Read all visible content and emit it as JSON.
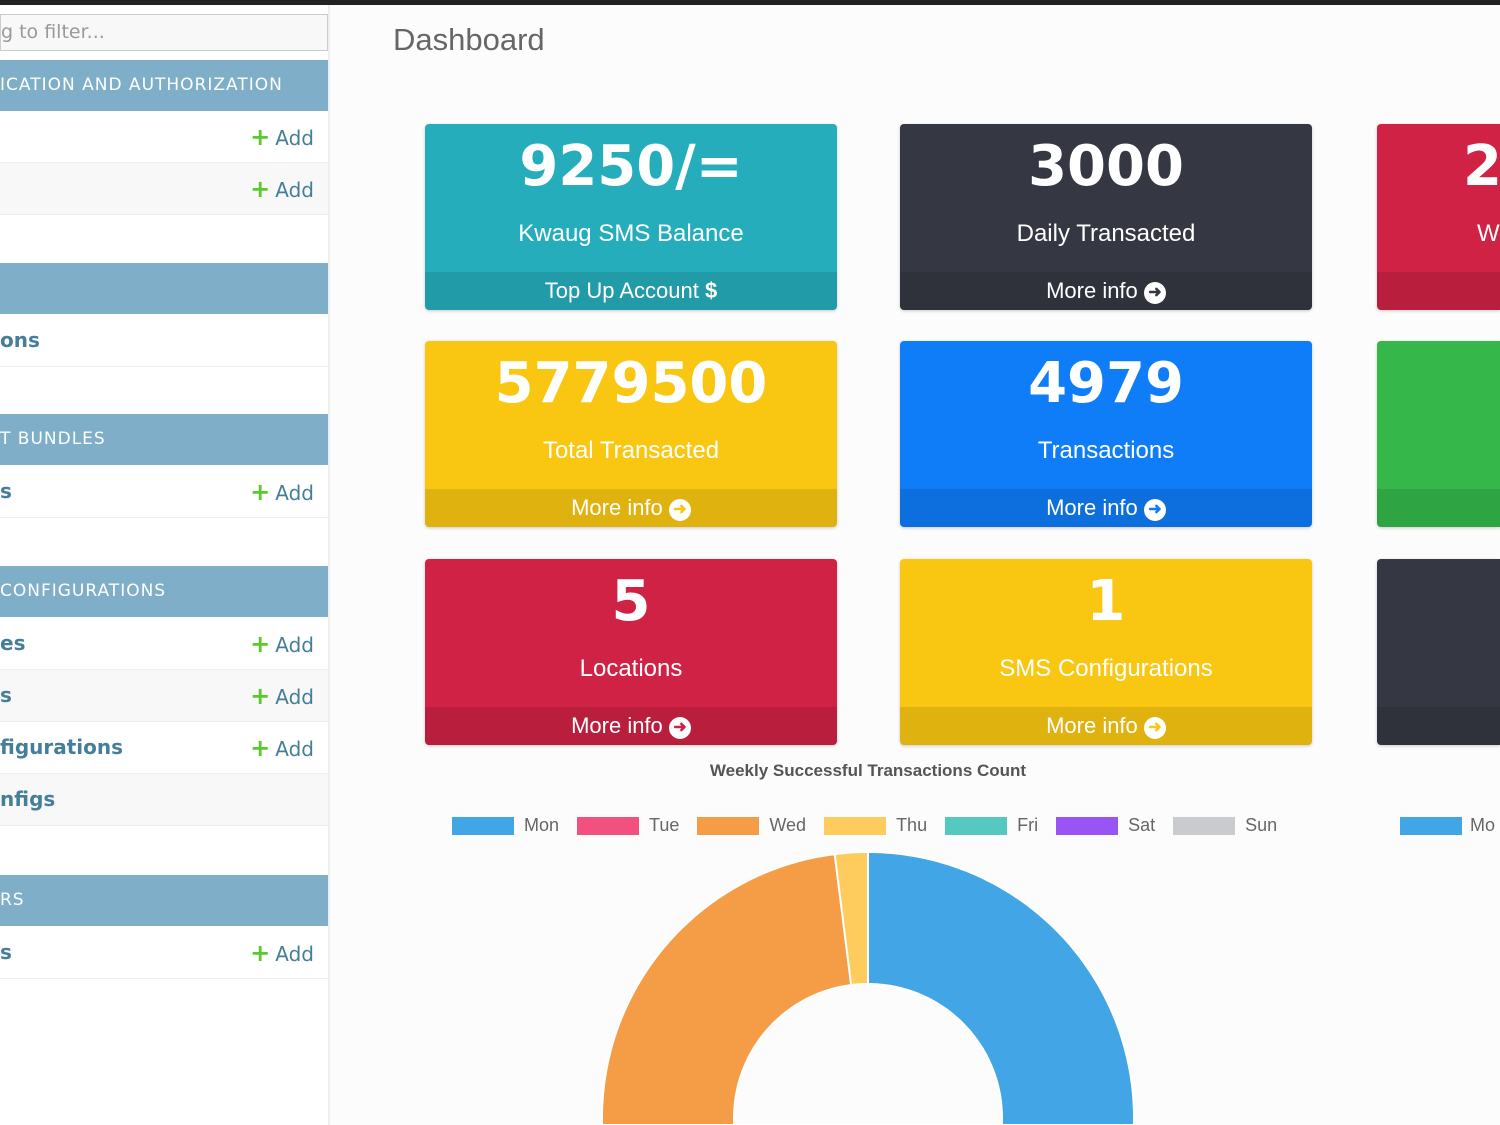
{
  "sidebar": {
    "filter_placeholder": "g to filter...",
    "add_label": "Add",
    "sections": [
      {
        "label": "ICATION AND AUTHORIZATION",
        "rows": [
          {
            "label": "",
            "add": true
          },
          {
            "label": "",
            "add": true
          }
        ]
      },
      {
        "label": "",
        "rows": [
          {
            "label": "ons",
            "add": false
          }
        ]
      },
      {
        "label": "T BUNDLES",
        "rows": [
          {
            "label": "s",
            "add": true
          }
        ]
      },
      {
        "label": "CONFIGURATIONS",
        "rows": [
          {
            "label": "es",
            "add": true
          },
          {
            "label": "s",
            "add": true
          },
          {
            "label": "figurations",
            "add": true
          },
          {
            "label": "nfigs",
            "add": false
          }
        ]
      },
      {
        "label": "RS",
        "rows": [
          {
            "label": "s",
            "add": true
          }
        ]
      }
    ]
  },
  "page_title": "Dashboard",
  "cards": [
    {
      "value": "9250/=",
      "label": "Kwaug SMS Balance",
      "footer": "Top Up Account",
      "icon": "dollar-icon",
      "color": "#26adbb"
    },
    {
      "value": "3000",
      "label": "Daily Transacted",
      "footer": "More info",
      "icon": "arrow-circle-right-icon",
      "color": "#353842"
    },
    {
      "value": "2",
      "label": "W",
      "footer": "",
      "icon": "",
      "color": "#d02245"
    },
    {
      "value": "5779500",
      "label": "Total Transacted",
      "footer": "More info",
      "icon": "arrow-circle-right-icon",
      "color": "#f9c711"
    },
    {
      "value": "4979",
      "label": "Transactions",
      "footer": "More info",
      "icon": "arrow-circle-right-icon",
      "color": "#0f7cf8"
    },
    {
      "value": "",
      "label": "",
      "footer": "",
      "icon": "",
      "color": "#35b74a"
    },
    {
      "value": "5",
      "label": "Locations",
      "footer": "More info",
      "icon": "arrow-circle-right-icon",
      "color": "#d02245"
    },
    {
      "value": "1",
      "label": "SMS Configurations",
      "footer": "More info",
      "icon": "arrow-circle-right-icon",
      "color": "#f9c711"
    },
    {
      "value": "",
      "label": "",
      "footer": "",
      "icon": "",
      "color": "#353842"
    }
  ],
  "chart_data": {
    "type": "pie",
    "title": "Weekly Successful Transactions Count",
    "categories": [
      "Mon",
      "Tue",
      "Wed",
      "Thu",
      "Fri",
      "Sat",
      "Sun"
    ],
    "values": [
      52,
      0,
      46,
      2,
      0,
      0,
      0
    ],
    "colors": [
      "#42a5e5",
      "#f2517f",
      "#f59d46",
      "#fdcc5c",
      "#55c9bf",
      "#9855f4",
      "#cacbcf"
    ],
    "legend": "top",
    "second_chart_legend_first": "Mo"
  }
}
